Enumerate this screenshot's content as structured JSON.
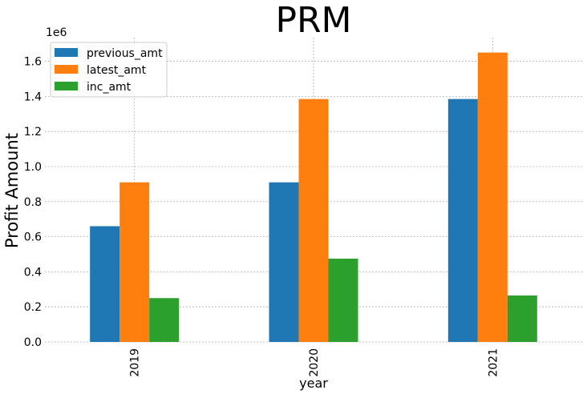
{
  "chart_data": {
    "type": "bar",
    "title": "PRM",
    "xlabel": "year",
    "ylabel": "Profit Amount",
    "y_scale_label": "1e6",
    "categories": [
      "2019",
      "2020",
      "2021"
    ],
    "series": [
      {
        "name": "previous_amt",
        "color": "#1f77b4",
        "values": [
          660000,
          910000,
          1385000
        ]
      },
      {
        "name": "latest_amt",
        "color": "#ff7f0e",
        "values": [
          910000,
          1385000,
          1650000
        ]
      },
      {
        "name": "inc_amt",
        "color": "#2ca02c",
        "values": [
          250000,
          475000,
          265000
        ]
      }
    ],
    "y_ticks": [
      "0.0",
      "0.2",
      "0.4",
      "0.6",
      "0.8",
      "1.0",
      "1.2",
      "1.4",
      "1.6"
    ],
    "ylim": [
      0,
      1735000
    ],
    "grid": true,
    "legend_position": "top-left"
  }
}
